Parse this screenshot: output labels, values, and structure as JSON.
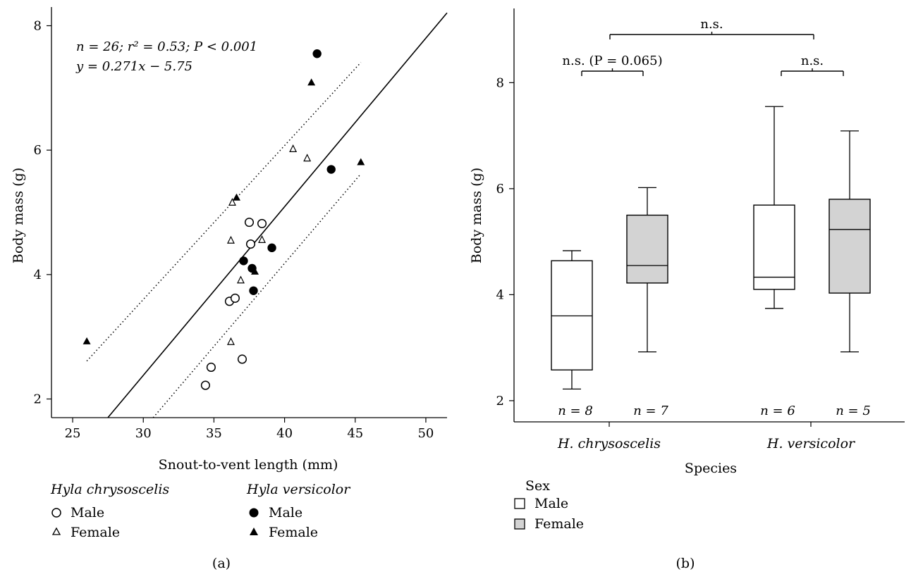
{
  "chart_data": [
    {
      "type": "scatter",
      "panel_label": "(a)",
      "xlabel": "Snout-to-vent length (mm)",
      "ylabel": "Body mass (g)",
      "xlim": [
        23.5,
        51.5
      ],
      "ylim": [
        1.7,
        8.3
      ],
      "xticks": [
        "25",
        "30",
        "35",
        "40",
        "45",
        "50"
      ],
      "yticks": [
        "2",
        "4",
        "6",
        "8"
      ],
      "grid": false,
      "annotation": {
        "stats_line": "n = 26; r² = 0.53; P < 0.001",
        "equation": "y = 0.271x − 5.75"
      },
      "regression": {
        "slope": 0.271,
        "intercept": -5.75,
        "x_range": [
          27.5,
          51.5
        ]
      },
      "confidence_band": {
        "upper": [
          [
            26,
            2.61
          ],
          [
            45.4,
            7.41
          ]
        ],
        "lower": [
          [
            30.7,
            1.7
          ],
          [
            45.4,
            5.62
          ]
        ]
      },
      "legend_groups": [
        {
          "title": "Hyla chrysoscelis",
          "items": [
            {
              "label": "Male",
              "marker": "open-circle"
            },
            {
              "label": "Female",
              "marker": "open-triangle"
            }
          ]
        },
        {
          "title": "Hyla versicolor",
          "items": [
            {
              "label": "Male",
              "marker": "filled-circle"
            },
            {
              "label": "Female",
              "marker": "filled-triangle"
            }
          ]
        }
      ],
      "series": [
        {
          "name": "Hyla chrysoscelis Male",
          "marker": "open-circle",
          "points": [
            [
              34.4,
              2.22
            ],
            [
              34.8,
              2.51
            ],
            [
              36.1,
              3.57
            ],
            [
              36.5,
              3.62
            ],
            [
              37.0,
              2.64
            ],
            [
              37.5,
              4.84
            ],
            [
              37.6,
              4.49
            ],
            [
              38.4,
              4.82
            ]
          ]
        },
        {
          "name": "Hyla chrysoscelis Female",
          "marker": "open-triangle",
          "points": [
            [
              36.2,
              4.55
            ],
            [
              36.3,
              5.16
            ],
            [
              36.2,
              2.92
            ],
            [
              36.9,
              3.91
            ],
            [
              38.4,
              4.56
            ],
            [
              40.6,
              6.02
            ],
            [
              41.6,
              5.87
            ]
          ]
        },
        {
          "name": "Hyla versicolor Male",
          "marker": "filled-circle",
          "points": [
            [
              37.1,
              4.22
            ],
            [
              37.7,
              4.1
            ],
            [
              37.8,
              3.74
            ],
            [
              39.1,
              4.43
            ],
            [
              42.3,
              7.55
            ],
            [
              43.3,
              5.69
            ]
          ]
        },
        {
          "name": "Hyla versicolor Female",
          "marker": "filled-triangle",
          "points": [
            [
              26.0,
              2.93
            ],
            [
              36.6,
              5.24
            ],
            [
              37.9,
              4.05
            ],
            [
              41.9,
              7.09
            ],
            [
              45.4,
              5.81
            ]
          ]
        }
      ]
    },
    {
      "type": "boxplot",
      "panel_label": "(b)",
      "xlabel": "Species",
      "ylabel": "Body mass (g)",
      "ylim": [
        1.6,
        9.4
      ],
      "yticks": [
        "2",
        "4",
        "6",
        "8"
      ],
      "categories": [
        "H. chrysoscelis",
        "H. versicolor"
      ],
      "legend": {
        "title": "Sex",
        "items": [
          {
            "label": "Male",
            "color": "#ffffff"
          },
          {
            "label": "Female",
            "color": "#d3d3d3"
          }
        ]
      },
      "boxes": [
        {
          "species": "H. chrysoscelis",
          "sex": "Male",
          "min": 2.22,
          "q1": 2.58,
          "median": 3.6,
          "q3": 4.64,
          "max": 4.83,
          "n_label": "n = 8"
        },
        {
          "species": "H. chrysoscelis",
          "sex": "Female",
          "min": 2.92,
          "q1": 4.22,
          "median": 4.55,
          "q3": 5.5,
          "max": 6.02,
          "n_label": "n = 7"
        },
        {
          "species": "H. versicolor",
          "sex": "Male",
          "min": 3.74,
          "q1": 4.1,
          "median": 4.33,
          "q3": 5.69,
          "max": 7.55,
          "n_label": "n = 6"
        },
        {
          "species": "H. versicolor",
          "sex": "Female",
          "min": 2.92,
          "q1": 4.03,
          "median": 5.23,
          "q3": 5.8,
          "max": 7.09,
          "n_label": "n = 5"
        }
      ],
      "significance": [
        {
          "between": "H. chrysoscelis Male vs Female",
          "label": "n.s. (P = 0.065)"
        },
        {
          "between": "H. versicolor Male vs Female",
          "label": "n.s."
        },
        {
          "between": "H. chrysoscelis vs H. versicolor",
          "label": "n.s."
        }
      ]
    }
  ]
}
